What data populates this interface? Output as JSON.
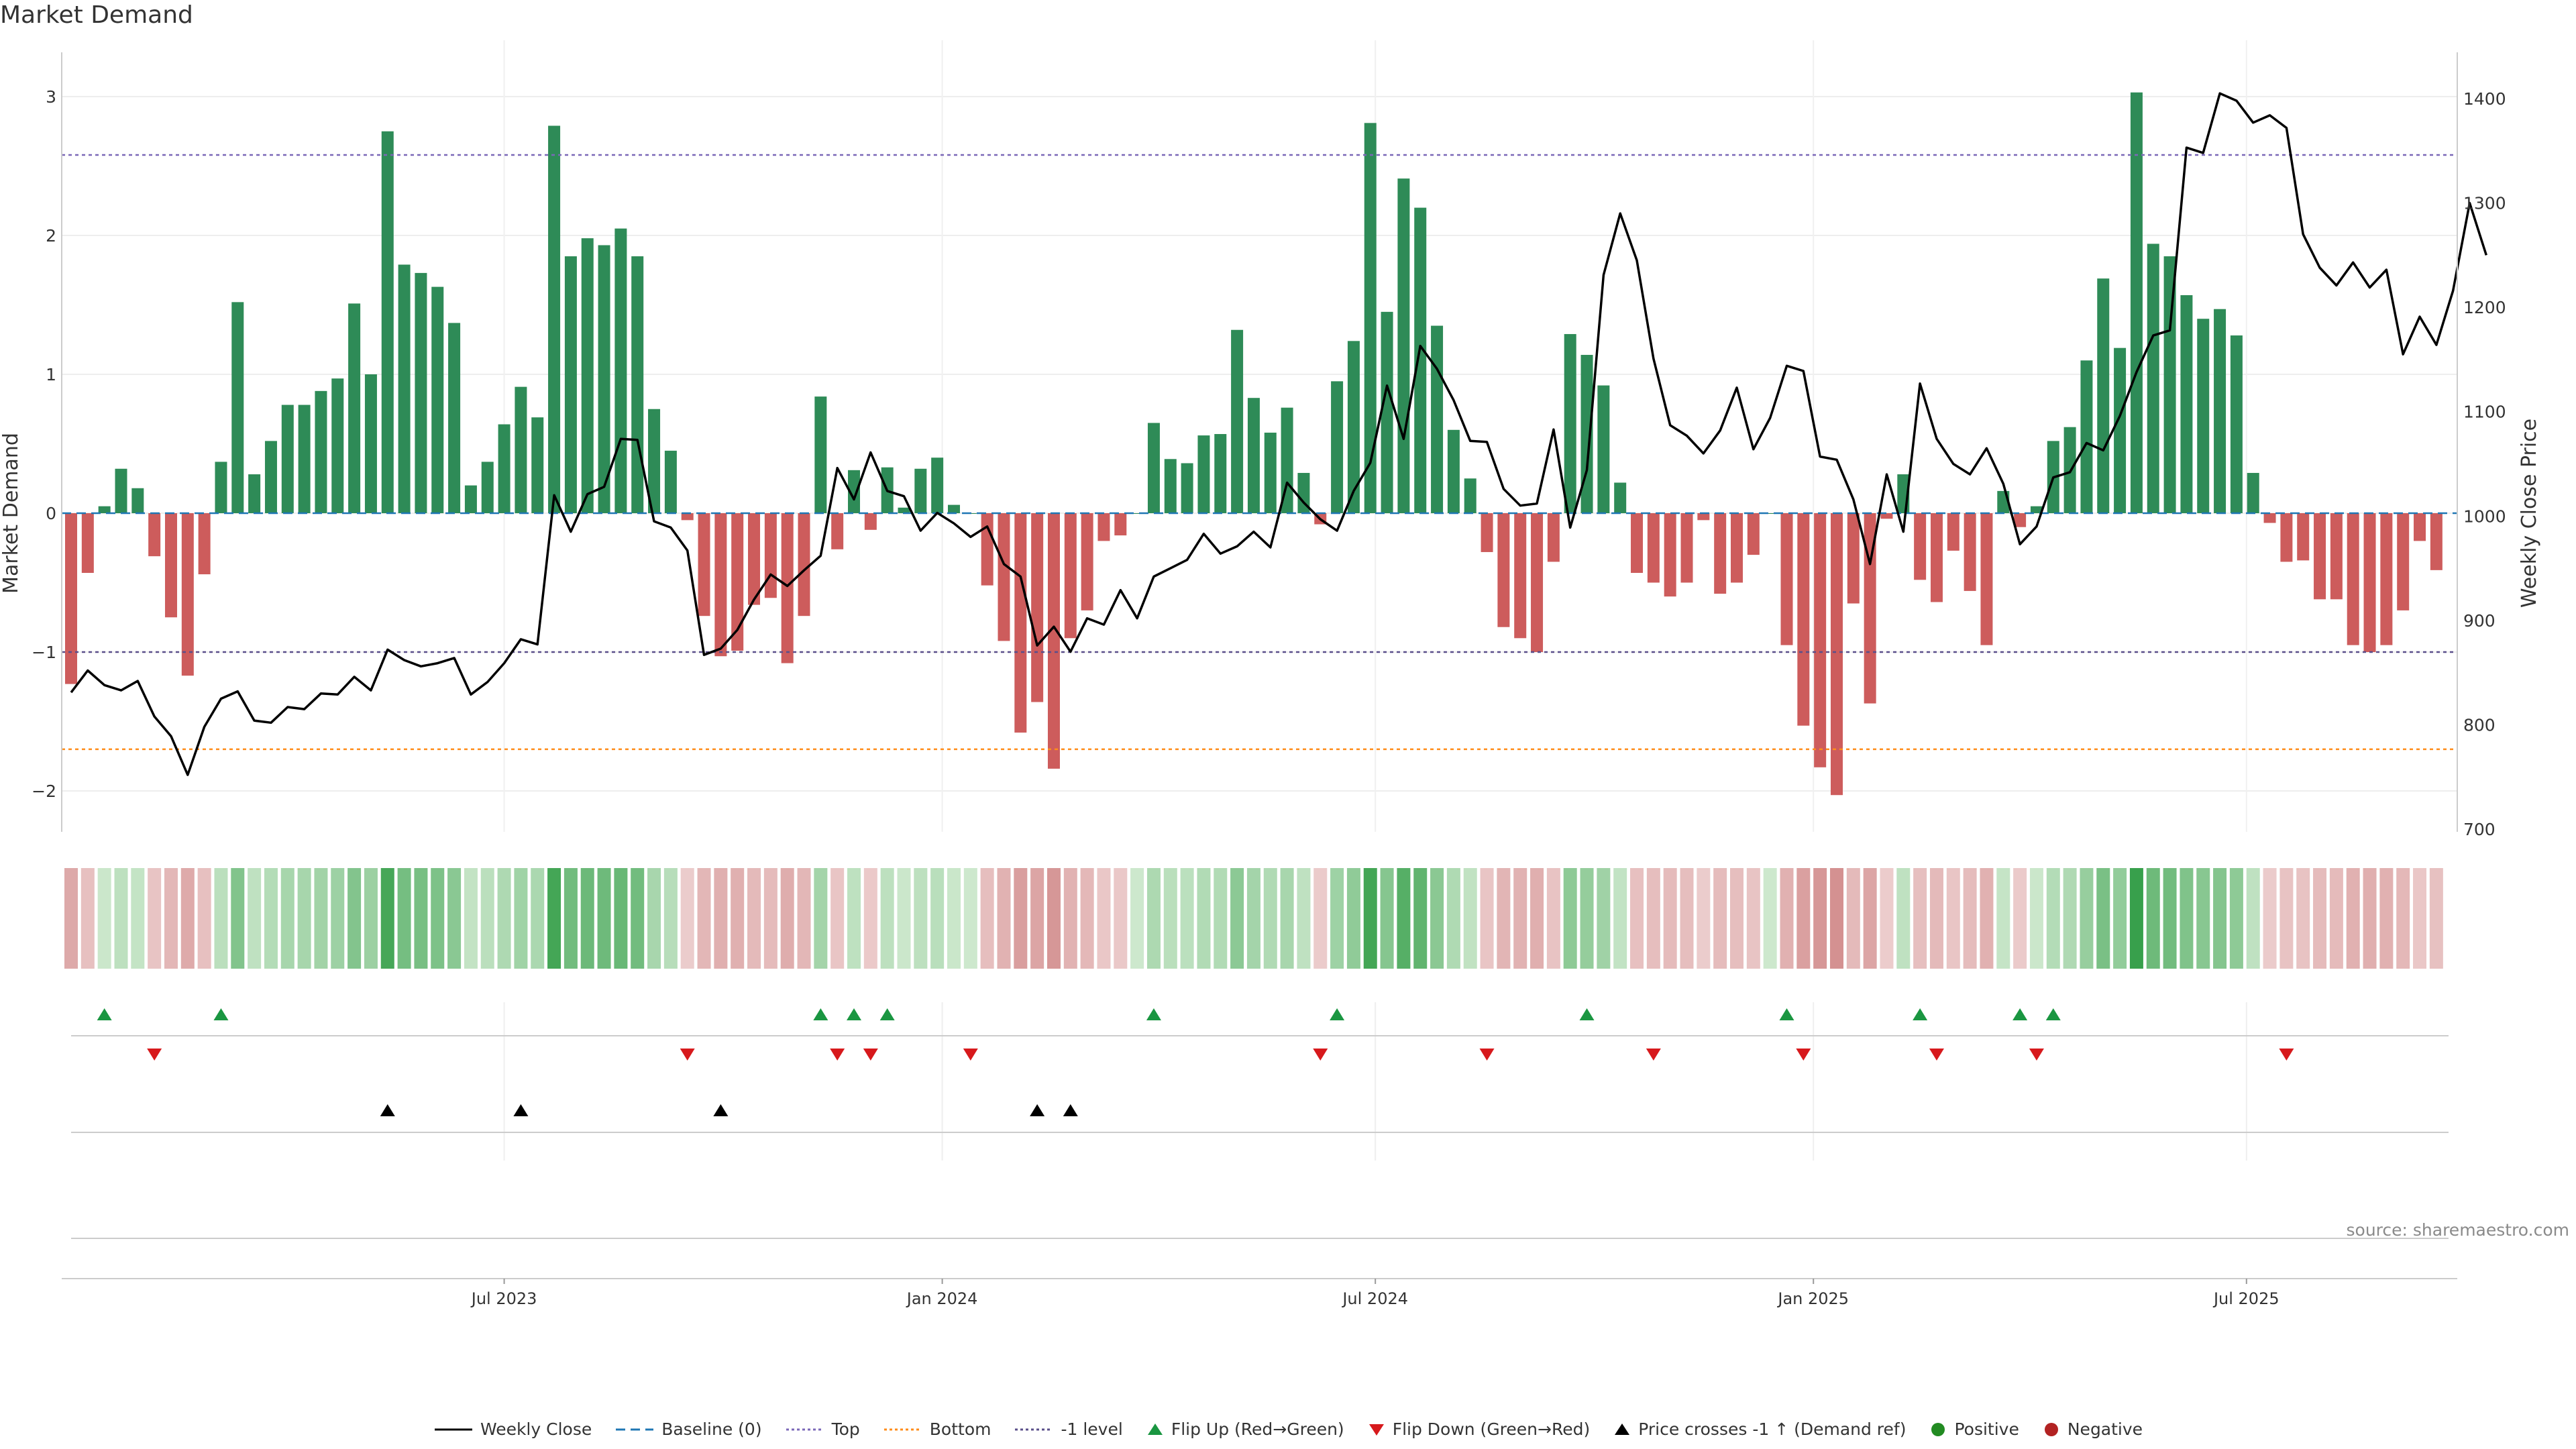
{
  "title": "Market Demand",
  "source": "source: sharemaestro.com",
  "colors": {
    "positive": "#2e8b57",
    "negative": "#cd5c5c",
    "price": "#000000",
    "top": "#7b68b8",
    "bottom": "#ff8c1a",
    "minus1": "#5a4f8a",
    "baseline": "#1f77b4",
    "flip_up": "#1a9641",
    "flip_down": "#d7191c",
    "cross": "#000000",
    "dot_pos": "#228b22",
    "dot_neg": "#b22222"
  },
  "chart_data": {
    "type": "bar",
    "title": "Market Demand",
    "ylabel": "Market Demand",
    "y2label": "Weekly Close Price",
    "ylim": [
      -2.3,
      3.3
    ],
    "y2lim": [
      700,
      1420
    ],
    "yticks": [
      -2,
      -1,
      0,
      1,
      2,
      3
    ],
    "ytick_labels": [
      "−2",
      "−1",
      "0",
      "1",
      "2",
      "3"
    ],
    "y2ticks": [
      700,
      800,
      900,
      1000,
      1100,
      1200,
      1300,
      1400
    ],
    "ytop": 2.58,
    "ybottom": -1.7,
    "yminus1": -1.0,
    "start_week": "2023-01-01",
    "xtick_labels": [
      {
        "label": "Jul 2023",
        "week": 26
      },
      {
        "label": "Jan 2024",
        "week": 52.3
      },
      {
        "label": "Jul 2024",
        "week": 78.3
      },
      {
        "label": "Jan 2025",
        "week": 104.6
      },
      {
        "label": "Jul 2025",
        "week": 130.6
      }
    ],
    "demand": [
      -1.23,
      -0.43,
      0.05,
      0.32,
      0.18,
      -0.31,
      -0.75,
      -1.17,
      -0.44,
      0.37,
      1.52,
      0.28,
      0.52,
      0.78,
      0.78,
      0.88,
      0.97,
      1.51,
      1.0,
      2.75,
      1.79,
      1.73,
      1.63,
      1.37,
      0.2,
      0.37,
      0.64,
      0.91,
      0.69,
      2.79,
      1.85,
      1.98,
      1.93,
      2.05,
      1.85,
      0.75,
      0.45,
      -0.05,
      -0.74,
      -1.03,
      -0.99,
      -0.66,
      -0.61,
      -1.08,
      -0.74,
      0.84,
      -0.26,
      0.31,
      -0.12,
      0.33,
      0.04,
      0.32,
      0.4,
      0.06,
      0.0,
      -0.52,
      -0.92,
      -1.58,
      -1.36,
      -1.84,
      -0.9,
      -0.7,
      -0.2,
      -0.16,
      0.0,
      0.65,
      0.39,
      0.36,
      0.56,
      0.57,
      1.32,
      0.83,
      0.58,
      0.76,
      0.29,
      -0.08,
      0.95,
      1.24,
      2.81,
      1.45,
      2.41,
      2.2,
      1.35,
      0.6,
      0.25,
      -0.28,
      -0.82,
      -0.9,
      -1.0,
      -0.35,
      1.29,
      1.14,
      0.92,
      0.22,
      -0.43,
      -0.5,
      -0.6,
      -0.5,
      -0.05,
      -0.58,
      -0.5,
      -0.3,
      0.0,
      -0.95,
      -1.53,
      -1.83,
      -2.03,
      -0.65,
      -1.37,
      -0.04,
      0.28,
      -0.48,
      -0.64,
      -0.27,
      -0.56,
      -0.95,
      0.16,
      -0.1,
      0.05,
      0.52,
      0.62,
      1.1,
      1.69,
      1.19,
      3.03,
      1.94,
      1.85,
      1.57,
      1.4,
      1.47,
      1.28,
      0.29,
      -0.07,
      -0.35,
      -0.34,
      -0.62,
      -0.62,
      -0.95,
      -1.0,
      -0.95,
      -0.7,
      -0.2,
      -0.41
    ],
    "price": [
      831,
      852,
      838,
      833,
      842,
      808,
      789,
      752,
      798,
      825,
      832,
      804,
      802,
      817,
      815,
      830,
      829,
      846,
      833,
      872,
      862,
      856,
      859,
      864,
      829,
      841,
      859,
      882,
      877,
      1020,
      985,
      1021,
      1028,
      1074,
      1073,
      995,
      989,
      967,
      867,
      873,
      891,
      920,
      944,
      933,
      948,
      962,
      1046,
      1016,
      1061,
      1024,
      1019,
      986,
      1003,
      993,
      980,
      990,
      954,
      942,
      876,
      894,
      870,
      902,
      896,
      929,
      902,
      942,
      950,
      958,
      983,
      964,
      971,
      985,
      970,
      1032,
      1013,
      997,
      986,
      1024,
      1051,
      1125,
      1074,
      1163,
      1141,
      1111,
      1072,
      1071,
      1026,
      1010,
      1012,
      1083,
      989,
      1044,
      1231,
      1290,
      1245,
      1151,
      1087,
      1077,
      1060,
      1082,
      1123,
      1064,
      1094,
      1144,
      1139,
      1057,
      1054,
      1016,
      954,
      1040,
      985,
      1127,
      1074,
      1050,
      1040,
      1065,
      1031,
      973,
      990,
      1037,
      1042,
      1070,
      1063,
      1096,
      1138,
      1173,
      1178,
      1353,
      1348,
      1405,
      1398,
      1377,
      1384,
      1372,
      1270,
      1238,
      1221,
      1243,
      1219,
      1236,
      1155,
      1191,
      1164,
      1216,
      1300,
      1250
    ],
    "flip_up_weeks": [
      2,
      9,
      45,
      47,
      49,
      65,
      76,
      91,
      103,
      111,
      117,
      119
    ],
    "flip_down_weeks": [
      5,
      37,
      46,
      48,
      54,
      75,
      85,
      95,
      104,
      112,
      118,
      133
    ],
    "price_cross_weeks": [
      19,
      27,
      39,
      58,
      60
    ],
    "heat_positive": "green cell shade scales with demand magnitude",
    "heat_negative": "red cell shade scales with demand magnitude"
  },
  "legend": [
    {
      "label": "Weekly Close",
      "kind": "line",
      "color": "#000000"
    },
    {
      "label": "Baseline (0)",
      "kind": "dash",
      "color": "#1f77b4"
    },
    {
      "label": "Top",
      "kind": "dot",
      "color": "#7b68b8"
    },
    {
      "label": "Bottom",
      "kind": "dot",
      "color": "#ff8c1a"
    },
    {
      "label": "-1 level",
      "kind": "dot",
      "color": "#5a4f8a"
    },
    {
      "label": "Flip Up (Red→Green)",
      "kind": "tri-up",
      "color": "#1a9641"
    },
    {
      "label": "Flip Down (Green→Red)",
      "kind": "tri-down",
      "color": "#d7191c"
    },
    {
      "label": "Price crosses -1 ↑ (Demand ref)",
      "kind": "tri-up",
      "color": "#000000"
    },
    {
      "label": "Positive",
      "kind": "circle",
      "color": "#228b22"
    },
    {
      "label": "Negative",
      "kind": "circle",
      "color": "#b22222"
    }
  ]
}
